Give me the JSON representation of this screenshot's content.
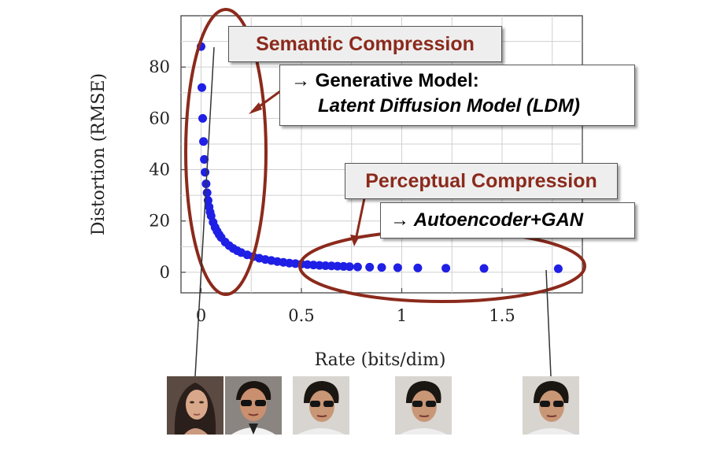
{
  "chart_data": {
    "type": "scatter",
    "xlabel": "Rate (bits/dim)",
    "ylabel": "Distortion (RMSE)",
    "xlim": [
      -0.1,
      1.9
    ],
    "ylim": [
      -8,
      100
    ],
    "x_ticks": [
      0,
      0.5,
      1,
      1.5
    ],
    "x_tick_labels": [
      "0",
      "0.5",
      "1",
      "1.5"
    ],
    "y_ticks": [
      0,
      20,
      40,
      60,
      80
    ],
    "y_tick_labels": [
      "0",
      "20",
      "40",
      "60",
      "80"
    ],
    "grid": true,
    "marker_color": "#1f1fe6",
    "series": [
      {
        "x": [
          0.0,
          0.004,
          0.008,
          0.012,
          0.016,
          0.02,
          0.025,
          0.03,
          0.035,
          0.04,
          0.045,
          0.05,
          0.06,
          0.07,
          0.08,
          0.09,
          0.1,
          0.12,
          0.14,
          0.16,
          0.18,
          0.2,
          0.23,
          0.26,
          0.29,
          0.32,
          0.35,
          0.38,
          0.41,
          0.44,
          0.47,
          0.5,
          0.53,
          0.56,
          0.59,
          0.62,
          0.65,
          0.68,
          0.71,
          0.74,
          0.78,
          0.84,
          0.9,
          0.98,
          1.08,
          1.22,
          1.41,
          1.78
        ],
        "y": [
          88.0,
          72.0,
          60.0,
          51.0,
          44.0,
          39.0,
          34.5,
          31.0,
          28.0,
          25.5,
          23.5,
          22.0,
          19.5,
          17.5,
          16.0,
          14.7,
          13.6,
          11.8,
          10.4,
          9.3,
          8.4,
          7.7,
          6.8,
          6.1,
          5.5,
          5.0,
          4.6,
          4.2,
          3.9,
          3.6,
          3.4,
          3.2,
          3.0,
          2.85,
          2.7,
          2.6,
          2.5,
          2.4,
          2.3,
          2.2,
          2.1,
          2.0,
          1.9,
          1.8,
          1.7,
          1.6,
          1.5,
          1.4
        ]
      }
    ]
  },
  "annotations": {
    "semantic": {
      "label": "Semantic Compression",
      "color": "#8b2a1c"
    },
    "generative": {
      "line1": "→ Generative Model:",
      "line2": "Latent Diffusion Model (LDM)"
    },
    "perceptual": {
      "label": "Perceptual Compression",
      "color": "#8b2a1c"
    },
    "autoencoder": {
      "label": "→ Autoencoder+GAN"
    }
  }
}
